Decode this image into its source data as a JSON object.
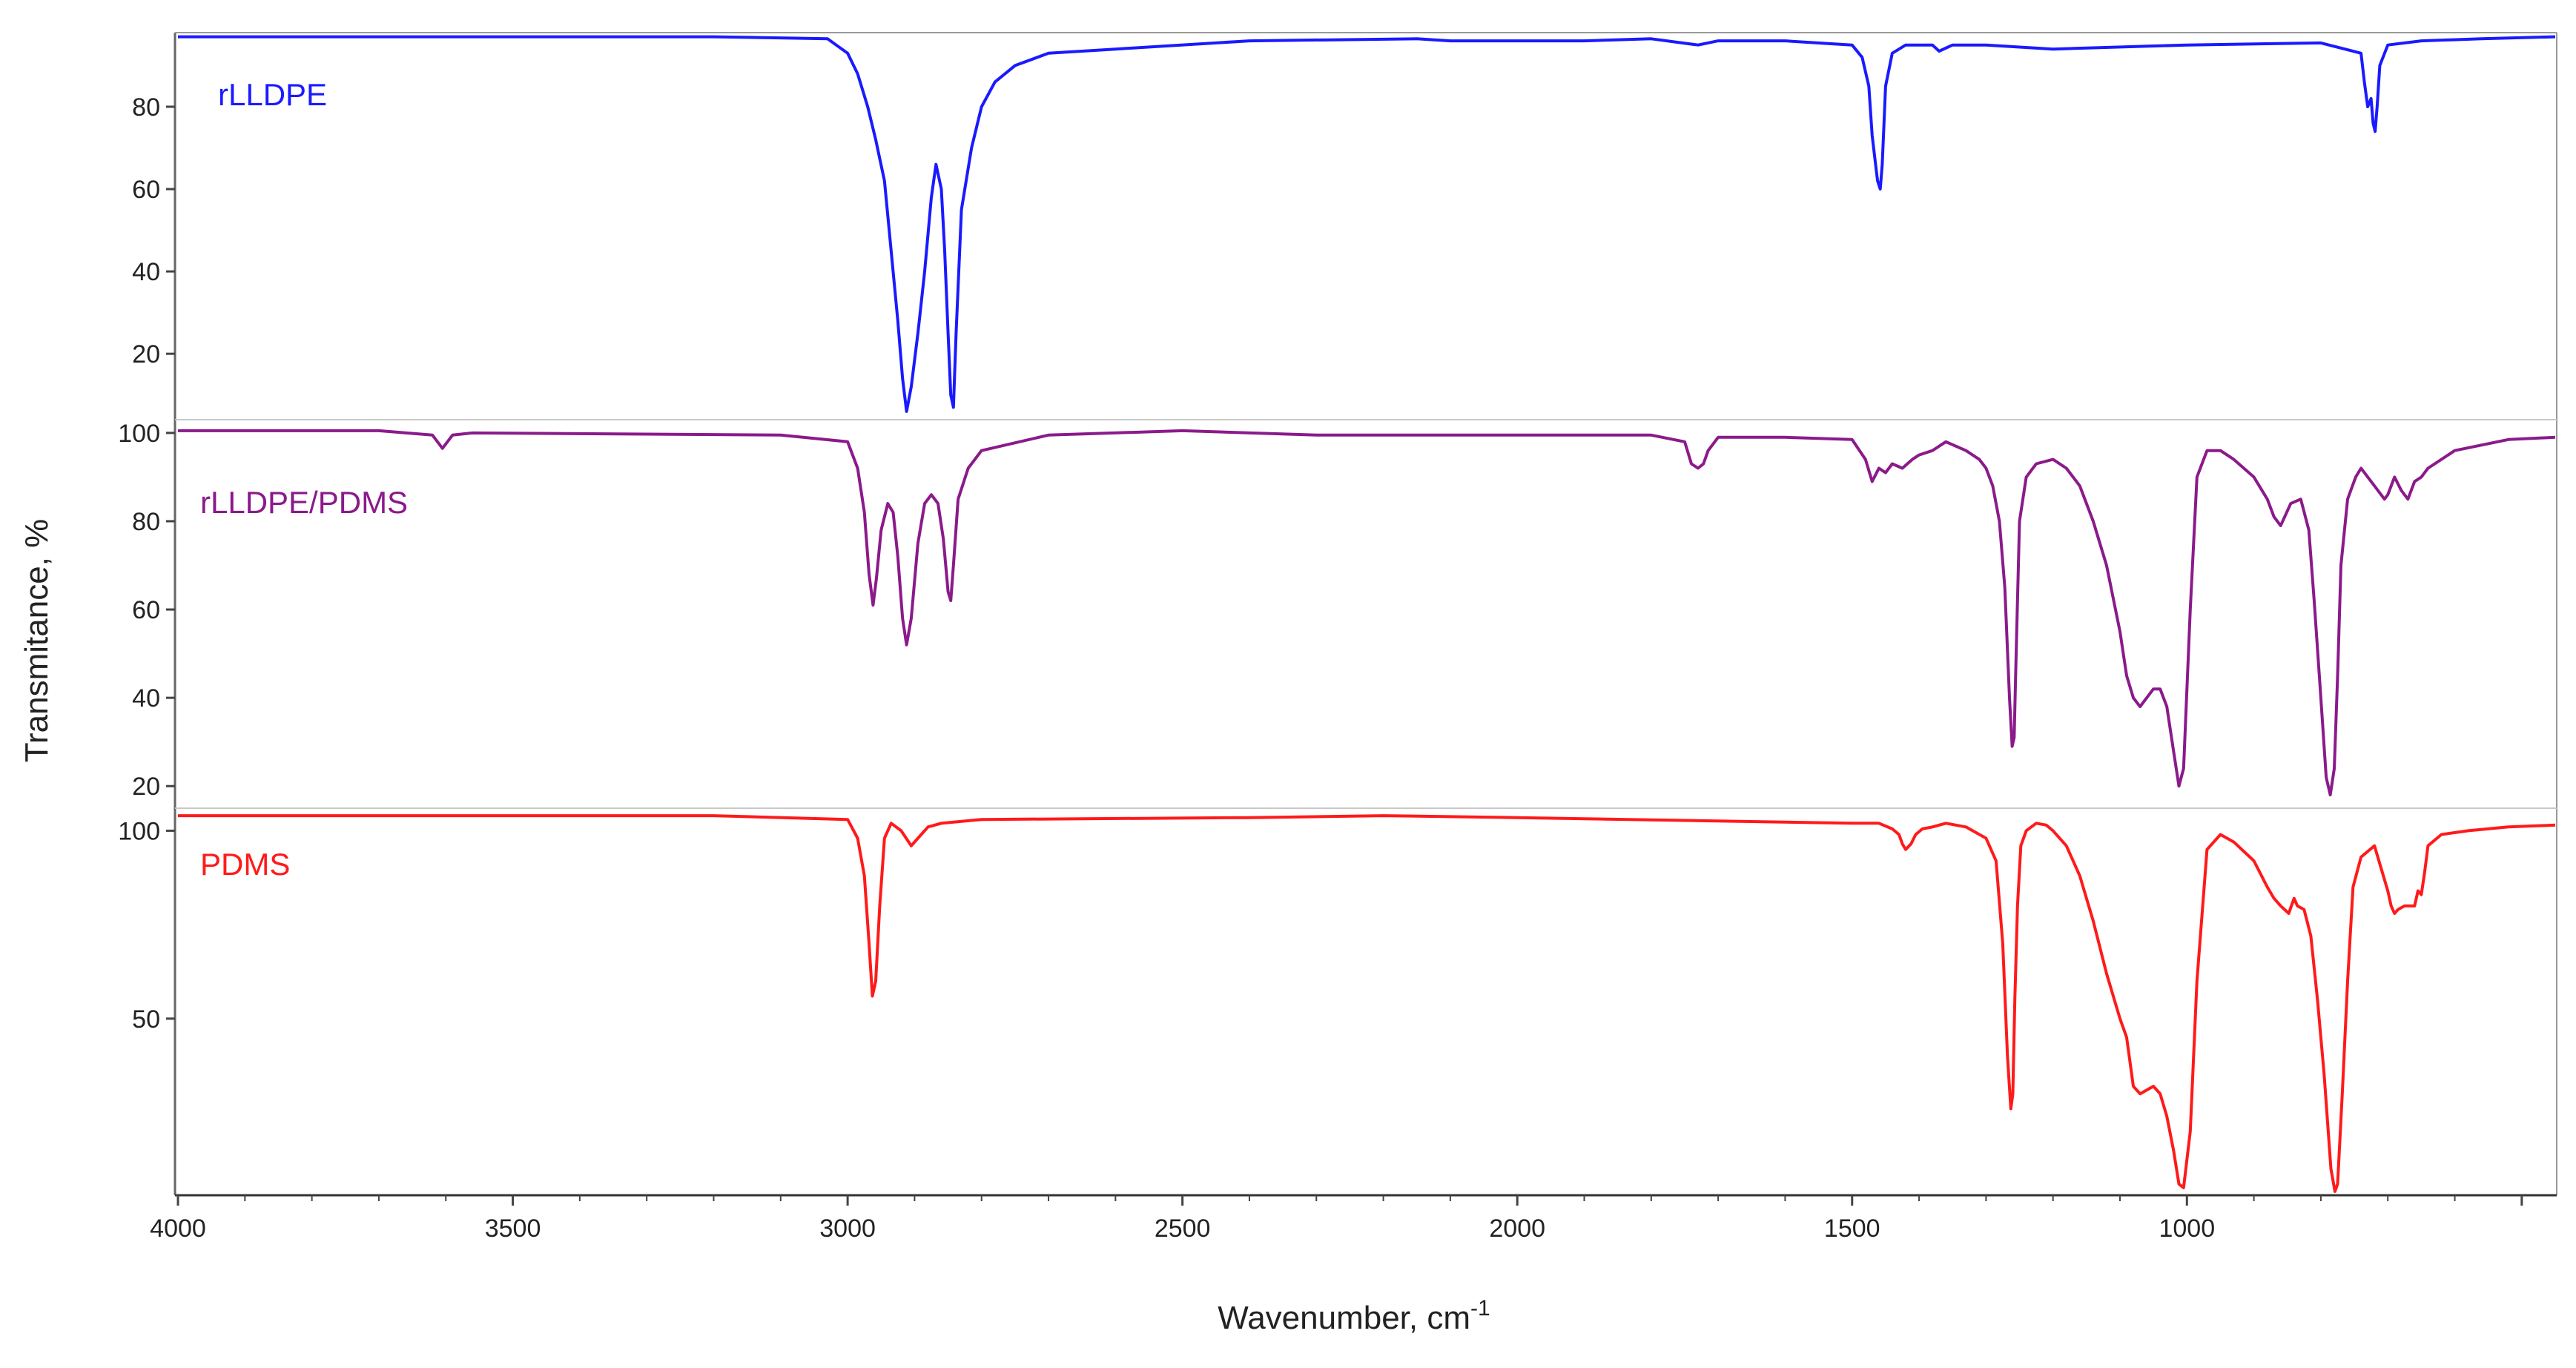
{
  "chart_data": {
    "type": "line",
    "xlabel": "Wavenumber, cm",
    "xlabel_superscript": "-1",
    "ylabel": "Transmitance, %",
    "xlim": [
      4000,
      450
    ],
    "x_ticks": [
      4000,
      3500,
      3000,
      2500,
      2000,
      1500,
      1000
    ],
    "grid": false,
    "legend": "none (series labels inside each panel)",
    "panels": [
      {
        "name": "rLLDPE",
        "color": "#1a1aff",
        "ylim": [
          4,
          98
        ],
        "y_ticks": [
          20,
          40,
          60,
          80
        ],
        "series": {
          "name": "rLLDPE",
          "x": [
            4000,
            3600,
            3200,
            3030,
            3000,
            2985,
            2970,
            2958,
            2945,
            2935,
            2925,
            2918,
            2912,
            2905,
            2895,
            2885,
            2875,
            2868,
            2860,
            2855,
            2850,
            2846,
            2842,
            2838,
            2830,
            2815,
            2800,
            2780,
            2750,
            2700,
            2600,
            2400,
            2150,
            2100,
            1900,
            1800,
            1730,
            1700,
            1600,
            1500,
            1485,
            1475,
            1470,
            1465,
            1462,
            1458,
            1455,
            1450,
            1440,
            1420,
            1380,
            1370,
            1350,
            1300,
            1200,
            1000,
            800,
            740,
            735,
            730,
            725,
            722,
            719,
            716,
            712,
            700,
            650,
            560,
            450
          ],
          "y": [
            97,
            97,
            97,
            96.5,
            93,
            88,
            80,
            72,
            62,
            45,
            28,
            14,
            6,
            12,
            25,
            40,
            58,
            66,
            60,
            45,
            25,
            10,
            7,
            25,
            55,
            70,
            80,
            86,
            90,
            93,
            94,
            96,
            96.5,
            96,
            96,
            96.5,
            95,
            96,
            96,
            95,
            92,
            85,
            73,
            66,
            62,
            60,
            66,
            85,
            93,
            95,
            95,
            93.5,
            95,
            95,
            94,
            95,
            95.5,
            93,
            86,
            80,
            82,
            76,
            74,
            80,
            90,
            95,
            96,
            96.5,
            97
          ]
        }
      },
      {
        "name": "rLLDPE/PDMS",
        "color": "#8b1a8b",
        "ylim": [
          15,
          103
        ],
        "y_ticks": [
          20,
          40,
          60,
          80,
          100
        ],
        "series": {
          "name": "rLLDPE/PDMS",
          "x": [
            4000,
            3700,
            3620,
            3605,
            3590,
            3560,
            3100,
            3000,
            2985,
            2975,
            2968,
            2962,
            2957,
            2950,
            2940,
            2932,
            2925,
            2918,
            2912,
            2905,
            2895,
            2885,
            2875,
            2865,
            2857,
            2850,
            2846,
            2842,
            2835,
            2820,
            2800,
            2700,
            2500,
            2300,
            1800,
            1750,
            1740,
            1730,
            1722,
            1715,
            1700,
            1600,
            1500,
            1480,
            1470,
            1460,
            1450,
            1440,
            1425,
            1410,
            1400,
            1380,
            1360,
            1330,
            1310,
            1300,
            1290,
            1280,
            1272,
            1265,
            1261,
            1258,
            1255,
            1250,
            1240,
            1225,
            1200,
            1180,
            1160,
            1140,
            1120,
            1100,
            1090,
            1080,
            1070,
            1060,
            1050,
            1040,
            1030,
            1020,
            1012,
            1005,
            995,
            985,
            970,
            950,
            930,
            900,
            880,
            870,
            860,
            845,
            830,
            818,
            810,
            800,
            792,
            786,
            780,
            775,
            770,
            760,
            748,
            740,
            720,
            705,
            700,
            690,
            680,
            670,
            660,
            650,
            640,
            600,
            520,
            450
          ],
          "y": [
            100.5,
            100.5,
            99.5,
            96.5,
            99.5,
            100,
            99.5,
            98,
            92,
            82,
            68,
            61,
            67,
            78,
            84,
            82,
            72,
            58,
            52,
            58,
            75,
            84,
            86,
            84,
            76,
            64,
            62,
            70,
            85,
            92,
            96,
            99.5,
            100.5,
            99.5,
            99.5,
            98,
            93,
            92,
            93,
            96,
            99,
            99,
            98.5,
            94,
            89,
            92,
            91,
            93,
            92,
            94,
            95,
            96,
            98,
            96,
            94,
            92,
            88,
            80,
            65,
            40,
            29,
            31,
            50,
            80,
            90,
            93,
            94,
            92,
            88,
            80,
            70,
            55,
            45,
            40,
            38,
            40,
            42,
            42,
            38,
            28,
            20,
            24,
            60,
            90,
            96,
            96,
            94,
            90,
            85,
            81,
            79,
            84,
            85,
            78,
            62,
            40,
            22,
            18,
            24,
            45,
            70,
            85,
            90,
            92,
            88,
            85,
            86,
            90,
            87,
            85,
            89,
            90,
            92,
            96,
            98.5,
            99
          ]
        }
      },
      {
        "name": "PDMS",
        "color": "#ff1a1a",
        "ylim": [
          3,
          106
        ],
        "y_ticks": [
          50,
          100
        ],
        "series": {
          "name": "PDMS",
          "x": [
            4000,
            3200,
            3000,
            2985,
            2975,
            2968,
            2963,
            2958,
            2952,
            2945,
            2935,
            2920,
            2905,
            2895,
            2880,
            2860,
            2800,
            2400,
            2200,
            2000,
            1500,
            1460,
            1440,
            1430,
            1425,
            1420,
            1412,
            1405,
            1395,
            1380,
            1360,
            1330,
            1300,
            1285,
            1275,
            1268,
            1263,
            1260,
            1257,
            1253,
            1248,
            1240,
            1225,
            1210,
            1200,
            1180,
            1160,
            1140,
            1120,
            1100,
            1090,
            1080,
            1070,
            1060,
            1050,
            1040,
            1030,
            1020,
            1012,
            1005,
            995,
            985,
            970,
            950,
            930,
            900,
            880,
            870,
            860,
            848,
            840,
            835,
            825,
            815,
            805,
            795,
            785,
            779,
            775,
            768,
            760,
            752,
            740,
            720,
            700,
            695,
            690,
            685,
            675,
            660,
            655,
            650,
            645,
            640,
            620,
            580,
            520,
            450
          ],
          "y": [
            104,
            104,
            103,
            98,
            88,
            70,
            56,
            60,
            80,
            98,
            102,
            100,
            96,
            98,
            101,
            102,
            103,
            103.5,
            104,
            103.5,
            102,
            102,
            100.5,
            99,
            96.5,
            95,
            96.5,
            99,
            100.5,
            101,
            102,
            101,
            98,
            92,
            70,
            40,
            26,
            30,
            55,
            80,
            96,
            100,
            102,
            101.5,
            100,
            96,
            88,
            76,
            62,
            50,
            45,
            32,
            30,
            31,
            32,
            30,
            24,
            15,
            6,
            5,
            20,
            60,
            95,
            99,
            97,
            92,
            85,
            82,
            80,
            78,
            82,
            80,
            79,
            72,
            55,
            35,
            10,
            4,
            6,
            30,
            60,
            85,
            93,
            96,
            84,
            80,
            78,
            79,
            80,
            80,
            84,
            83,
            89,
            96,
            99,
            100,
            101,
            101.5
          ]
        }
      }
    ]
  }
}
